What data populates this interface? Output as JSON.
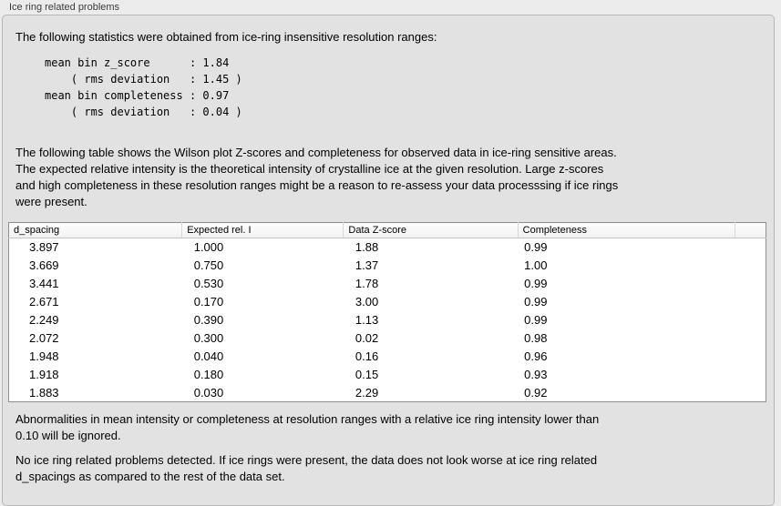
{
  "panel": {
    "title": "Ice ring related problems",
    "intro": "The following statistics were obtained from ice-ring insensitive resolution ranges:",
    "stats_block": "mean bin z_score      : 1.84\n    ( rms deviation   : 1.45 )\nmean bin completeness : 0.97\n    ( rms deviation   : 0.04 )",
    "stats": {
      "mean_bin_z_score": "1.84",
      "mean_bin_z_score_rms_deviation": "1.45",
      "mean_bin_completeness": "0.97",
      "mean_bin_completeness_rms_deviation": "0.04"
    },
    "table_description": "The following table shows the Wilson plot Z-scores and completeness for observed data in ice-ring sensitive areas.\nThe expected relative intensity is the theoretical intensity of crystalline ice at the given resolution. Large z-scores\nand high completeness in these resolution ranges might be a reason to re-assess your data processsing if ice rings\nwere present.",
    "note_ignore": "Abnormalities in mean intensity or completeness at resolution ranges with a relative ice ring intensity lower than\n0.10 will be ignored.",
    "conclusion": "No ice ring related problems detected. If ice rings were present, the data does not look worse at ice ring related\nd_spacings as compared to the rest of the data set."
  },
  "table": {
    "columns": [
      "d_spacing",
      "Expected rel. I",
      "Data Z-score",
      "Completeness"
    ],
    "rows": [
      [
        "3.897",
        "1.000",
        "1.88",
        "0.99"
      ],
      [
        "3.669",
        "0.750",
        "1.37",
        "1.00"
      ],
      [
        "3.441",
        "0.530",
        "1.78",
        "0.99"
      ],
      [
        "2.671",
        "0.170",
        "3.00",
        "0.99"
      ],
      [
        "2.249",
        "0.390",
        "1.13",
        "0.99"
      ],
      [
        "2.072",
        "0.300",
        "0.02",
        "0.98"
      ],
      [
        "1.948",
        "0.040",
        "0.16",
        "0.96"
      ],
      [
        "1.918",
        "0.180",
        "0.15",
        "0.93"
      ],
      [
        "1.883",
        "0.030",
        "2.29",
        "0.92"
      ]
    ]
  },
  "colors": {
    "window_background": "#ececec",
    "panel_background": "#e2e2e2",
    "panel_border": "#b6b6b6",
    "table_background": "#ffffff",
    "table_border": "#8f8f8f",
    "header_background": "#f6f6f6",
    "text": "#000000"
  }
}
